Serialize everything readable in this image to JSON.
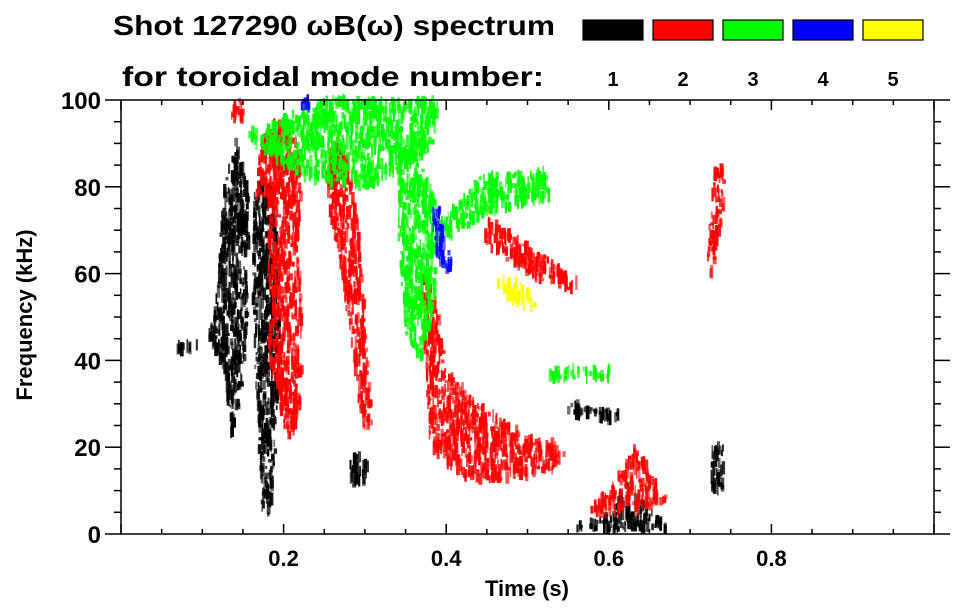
{
  "chart_data": {
    "type": "heatmap",
    "title_line1": "Shot 127290 ωB(ω) spectrum",
    "title_line2": "for toroidal mode number:",
    "xlabel": "Time (s)",
    "ylabel": "Frequency (kHz)",
    "xlim": [
      0,
      1.0
    ],
    "ylim": [
      0,
      100
    ],
    "x_ticks": [
      {
        "value": 0.2,
        "label": "0.2"
      },
      {
        "value": 0.4,
        "label": "0.4"
      },
      {
        "value": 0.6,
        "label": "0.6"
      },
      {
        "value": 0.8,
        "label": "0.8"
      }
    ],
    "x_minor_step": 0.05,
    "y_ticks": [
      {
        "value": 0,
        "label": "0"
      },
      {
        "value": 20,
        "label": "20"
      },
      {
        "value": 40,
        "label": "40"
      },
      {
        "value": 60,
        "label": "60"
      },
      {
        "value": 80,
        "label": "80"
      },
      {
        "value": 100,
        "label": "100"
      }
    ],
    "y_minor_step": 5,
    "grid": false,
    "legend": {
      "placement": "top-right",
      "entries": [
        {
          "mode": "1",
          "color": "#000000"
        },
        {
          "mode": "2",
          "color": "#ff0000"
        },
        {
          "mode": "3",
          "color": "#00ff00"
        },
        {
          "mode": "4",
          "color": "#0000ff"
        },
        {
          "mode": "5",
          "color": "#ffff00"
        }
      ]
    },
    "features": [
      {
        "mode": "1",
        "poly": [
          [
            0.065,
            42
          ],
          [
            0.1,
            43
          ],
          [
            0.115,
            55
          ],
          [
            0.125,
            80
          ],
          [
            0.14,
            91
          ],
          [
            0.155,
            80
          ],
          [
            0.155,
            50
          ],
          [
            0.145,
            30
          ],
          [
            0.135,
            22
          ],
          [
            0.125,
            38
          ],
          [
            0.11,
            44
          ],
          [
            0.065,
            43.5
          ]
        ]
      },
      {
        "mode": "1",
        "poly": [
          [
            0.163,
            80
          ],
          [
            0.18,
            82
          ],
          [
            0.19,
            70
          ],
          [
            0.195,
            40
          ],
          [
            0.188,
            18
          ],
          [
            0.182,
            4
          ],
          [
            0.172,
            4
          ],
          [
            0.168,
            20
          ],
          [
            0.16,
            55
          ]
        ]
      },
      {
        "mode": "1",
        "poly": [
          [
            0.28,
            12
          ],
          [
            0.3,
            12
          ],
          [
            0.305,
            15
          ],
          [
            0.29,
            19
          ],
          [
            0.28,
            16
          ]
        ]
      },
      {
        "mode": "1",
        "poly": [
          [
            0.545,
            30
          ],
          [
            0.61,
            28
          ],
          [
            0.61,
            26
          ],
          [
            0.545,
            28
          ]
        ]
      },
      {
        "mode": "1",
        "poly": [
          [
            0.56,
            2
          ],
          [
            0.6,
            4
          ],
          [
            0.62,
            12
          ],
          [
            0.635,
            8
          ],
          [
            0.67,
            2
          ],
          [
            0.67,
            1
          ],
          [
            0.56,
            1
          ]
        ]
      },
      {
        "mode": "1",
        "poly": [
          [
            0.725,
            10
          ],
          [
            0.74,
            10
          ],
          [
            0.74,
            20
          ],
          [
            0.725,
            20
          ]
        ]
      },
      {
        "mode": "2",
        "poly": [
          [
            0.135,
            95
          ],
          [
            0.15,
            95
          ],
          [
            0.15,
            100
          ],
          [
            0.135,
            100
          ]
        ]
      },
      {
        "mode": "2",
        "poly": [
          [
            0.165,
            78
          ],
          [
            0.2,
            76
          ],
          [
            0.22,
            80
          ],
          [
            0.215,
            92
          ],
          [
            0.185,
            95
          ],
          [
            0.168,
            90
          ]
        ]
      },
      {
        "mode": "2",
        "poly": [
          [
            0.18,
            80
          ],
          [
            0.22,
            80
          ],
          [
            0.22,
            30
          ],
          [
            0.205,
            20
          ],
          [
            0.18,
            40
          ]
        ]
      },
      {
        "mode": "2",
        "poly": [
          [
            0.25,
            85
          ],
          [
            0.265,
            91
          ],
          [
            0.28,
            85
          ],
          [
            0.29,
            70
          ],
          [
            0.3,
            45
          ],
          [
            0.307,
            25
          ],
          [
            0.295,
            24
          ],
          [
            0.285,
            40
          ],
          [
            0.27,
            60
          ],
          [
            0.255,
            75
          ]
        ]
      },
      {
        "mode": "2",
        "poly": [
          [
            0.37,
            60
          ],
          [
            0.385,
            55
          ],
          [
            0.4,
            37
          ],
          [
            0.45,
            28
          ],
          [
            0.5,
            22
          ],
          [
            0.53,
            21
          ],
          [
            0.545,
            18
          ],
          [
            0.53,
            15
          ],
          [
            0.45,
            12
          ],
          [
            0.41,
            14
          ],
          [
            0.38,
            20
          ],
          [
            0.37,
            40
          ]
        ]
      },
      {
        "mode": "2",
        "poly": [
          [
            0.45,
            72
          ],
          [
            0.47,
            70
          ],
          [
            0.52,
            64
          ],
          [
            0.56,
            58
          ],
          [
            0.55,
            56
          ],
          [
            0.51,
            59
          ],
          [
            0.46,
            64
          ],
          [
            0.445,
            68
          ]
        ]
      },
      {
        "mode": "2",
        "poly": [
          [
            0.57,
            5
          ],
          [
            0.6,
            10
          ],
          [
            0.63,
            20
          ],
          [
            0.65,
            14
          ],
          [
            0.67,
            8
          ],
          [
            0.64,
            6
          ],
          [
            0.6,
            5
          ]
        ]
      },
      {
        "mode": "2",
        "poly": [
          [
            0.722,
            57
          ],
          [
            0.74,
            75
          ],
          [
            0.74,
            85
          ],
          [
            0.728,
            83
          ],
          [
            0.72,
            65
          ]
        ]
      },
      {
        "mode": "3",
        "poly": [
          [
            0.15,
            92
          ],
          [
            0.25,
            100
          ],
          [
            0.39,
            100
          ],
          [
            0.38,
            88
          ],
          [
            0.3,
            80
          ],
          [
            0.22,
            82
          ]
        ]
      },
      {
        "mode": "3",
        "poly": [
          [
            0.34,
            88
          ],
          [
            0.36,
            88
          ],
          [
            0.39,
            75
          ],
          [
            0.385,
            55
          ],
          [
            0.37,
            40
          ],
          [
            0.35,
            45
          ],
          [
            0.34,
            65
          ]
        ]
      },
      {
        "mode": "3",
        "poly": [
          [
            0.39,
            72
          ],
          [
            0.44,
            82
          ],
          [
            0.52,
            84
          ],
          [
            0.53,
            78
          ],
          [
            0.45,
            74
          ],
          [
            0.4,
            68
          ]
        ]
      },
      {
        "mode": "3",
        "poly": [
          [
            0.52,
            36
          ],
          [
            0.6,
            36
          ],
          [
            0.6,
            38
          ],
          [
            0.52,
            38
          ]
        ]
      },
      {
        "mode": "4",
        "poly": [
          [
            0.38,
            75
          ],
          [
            0.39,
            75
          ],
          [
            0.405,
            62
          ],
          [
            0.4,
            60
          ],
          [
            0.385,
            65
          ]
        ]
      },
      {
        "mode": "4",
        "poly": [
          [
            0.22,
            97
          ],
          [
            0.23,
            97
          ],
          [
            0.23,
            100
          ],
          [
            0.22,
            100
          ]
        ]
      },
      {
        "mode": "5",
        "poly": [
          [
            0.46,
            58
          ],
          [
            0.49,
            58
          ],
          [
            0.51,
            53
          ],
          [
            0.5,
            51
          ],
          [
            0.47,
            55
          ]
        ]
      }
    ]
  }
}
